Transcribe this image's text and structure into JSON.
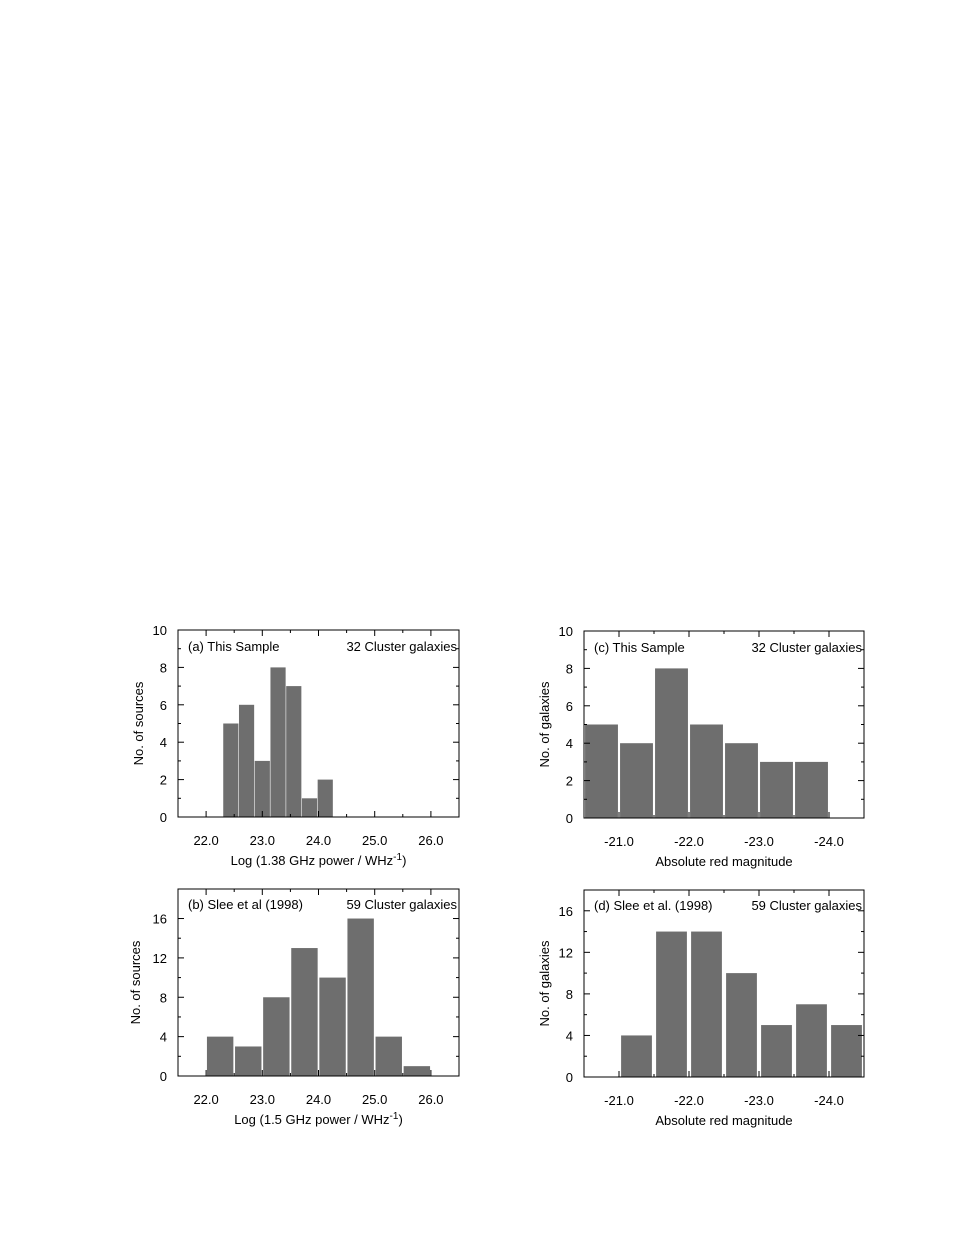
{
  "chart_data": [
    {
      "id": "a",
      "type": "bar",
      "panel_label": "(a)",
      "annotation_left": "This Sample",
      "annotation_right": "32 Cluster galaxies",
      "ylabel": "No. of sources",
      "xlabel": "Log  (1.38 GHz power / WHz",
      "xlabel_sup": "-1",
      "xlabel_tail": ")",
      "xlim": [
        21.5,
        26.5
      ],
      "ylim": [
        0,
        10
      ],
      "xticks": [
        22.0,
        23.0,
        24.0,
        25.0,
        26.0
      ],
      "xtick_labels": [
        "22.0",
        "23.0",
        "24.0",
        "25.0",
        "26.0"
      ],
      "yticks": [
        0,
        2,
        4,
        6,
        8,
        10
      ],
      "ytick_labels": [
        "0",
        "2",
        "4",
        "6",
        "8",
        "10"
      ],
      "bar_width": 0.27,
      "x": [
        22.44,
        22.72,
        23.0,
        23.28,
        23.56,
        23.84,
        24.12
      ],
      "values": [
        5,
        6,
        3,
        8,
        7,
        1,
        2
      ],
      "color": "#6e6e6e"
    },
    {
      "id": "b",
      "type": "bar",
      "panel_label": "(b)",
      "annotation_left": "Slee et al (1998)",
      "annotation_right": "59 Cluster galaxies",
      "ylabel": "No. of sources",
      "xlabel": "Log  (1.5 GHz power  / WHz",
      "xlabel_sup": "-1",
      "xlabel_tail": ")",
      "xlim": [
        21.5,
        26.5
      ],
      "ylim": [
        0,
        19
      ],
      "xticks": [
        22.0,
        23.0,
        24.0,
        25.0,
        26.0
      ],
      "xtick_labels": [
        "22.0",
        "23.0",
        "24.0",
        "25.0",
        "26.0"
      ],
      "yticks": [
        0,
        4,
        8,
        12,
        16
      ],
      "ytick_labels": [
        "0",
        "4",
        "8",
        "12",
        "16"
      ],
      "bar_width": 0.47,
      "x": [
        22.25,
        22.75,
        23.25,
        23.75,
        24.25,
        24.75,
        25.25,
        25.75
      ],
      "values": [
        4,
        3,
        8,
        13,
        10,
        16,
        4,
        1
      ],
      "color": "#6e6e6e"
    },
    {
      "id": "c",
      "type": "bar",
      "panel_label": "(c)",
      "annotation_left": "This Sample",
      "annotation_right": "32 Cluster galaxies",
      "ylabel": "No. of  galaxies",
      "xlabel": "Absolute red magnitude",
      "xlim": [
        -20.5,
        -24.5
      ],
      "ylim": [
        0,
        10
      ],
      "xticks": [
        -21.0,
        -22.0,
        -23.0,
        -24.0
      ],
      "xtick_labels": [
        "-21.0",
        "-22.0",
        "-23.0",
        "-24.0"
      ],
      "yticks": [
        0,
        2,
        4,
        6,
        8,
        10
      ],
      "ytick_labels": [
        "0",
        "2",
        "4",
        "6",
        "8",
        "10"
      ],
      "bar_width": 0.47,
      "x": [
        -20.75,
        -21.25,
        -21.75,
        -22.25,
        -22.75,
        -23.25,
        -23.75
      ],
      "values": [
        5,
        4,
        8,
        5,
        4,
        3,
        3
      ],
      "color": "#6e6e6e"
    },
    {
      "id": "d",
      "type": "bar",
      "panel_label": "(d)",
      "annotation_left": "Slee et al. (1998)",
      "annotation_right": "59 Cluster galaxies",
      "ylabel": "No. of galaxies",
      "xlabel": "Absolute red magnitude",
      "xlim": [
        -20.5,
        -24.5
      ],
      "ylim": [
        0,
        18
      ],
      "xticks": [
        -21.0,
        -22.0,
        -23.0,
        -24.0
      ],
      "xtick_labels": [
        "-21.0",
        "-22.0",
        "-23.0",
        "-24.0"
      ],
      "yticks": [
        0,
        4,
        8,
        12,
        16
      ],
      "ytick_labels": [
        "0",
        "4",
        "8",
        "12",
        "16"
      ],
      "bar_width": 0.44,
      "x": [
        -21.25,
        -21.75,
        -22.25,
        -22.75,
        -23.25,
        -23.75,
        -24.25
      ],
      "values": [
        4,
        14,
        14,
        10,
        5,
        7,
        5
      ],
      "color": "#6e6e6e"
    }
  ]
}
